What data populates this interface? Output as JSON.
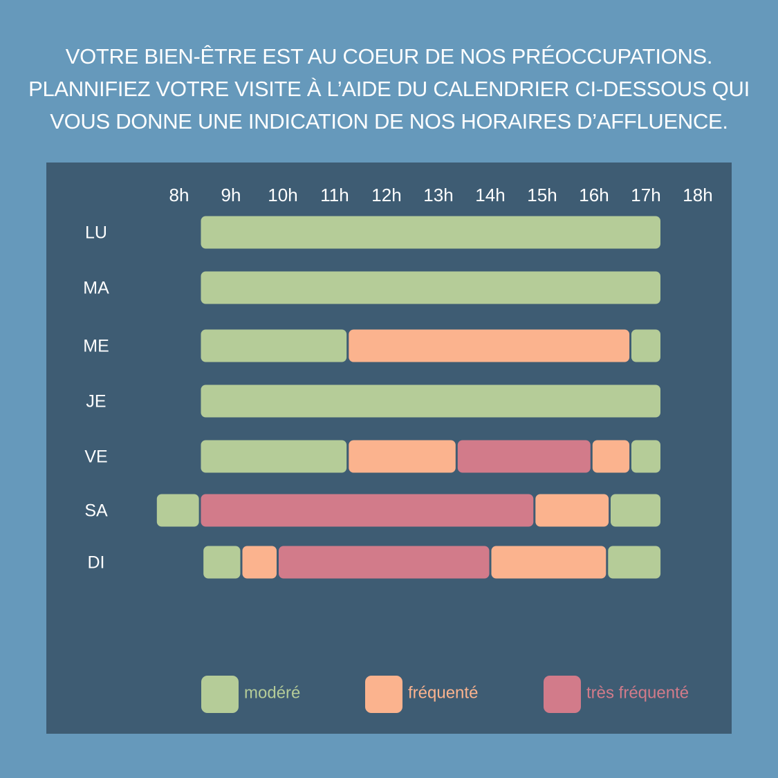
{
  "headline": {
    "line1": "VOTRE BIEN-ÊTRE EST AU COEUR DE NOS PRÉOCCUPATIONS.",
    "line2": "PLANNIFIEZ VOTRE VISITE À L’AIDE DU CALENDRIER CI-DESSOUS QUI",
    "line3": "VOUS DONNE UNE INDICATION DE NOS HORAIRES D’AFFLUENCE."
  },
  "colors": {
    "page_background": "#6699bb",
    "panel_background": "#3e5c73",
    "modere": "#b5cc98",
    "frequente": "#fbb38e",
    "tres_frequente": "#d27b8a"
  },
  "chart_data": {
    "type": "timeline",
    "title": "",
    "xlabel": "",
    "ylabel": "",
    "hours": [
      "8h",
      "9h",
      "10h",
      "11h",
      "12h",
      "13h",
      "14h",
      "15h",
      "16h",
      "17h",
      "18h"
    ],
    "hour_values": [
      8,
      9,
      10,
      11,
      12,
      13,
      14,
      15,
      16,
      17,
      18
    ],
    "days": [
      "LU",
      "MA",
      "ME",
      "JE",
      "VE",
      "SA",
      "DI"
    ],
    "grid": false,
    "legend_position": "bottom",
    "legend": [
      {
        "key": "modere",
        "label": "modéré"
      },
      {
        "key": "frequente",
        "label": "fréquenté"
      },
      {
        "key": "tres_frequente",
        "label": "très fréquenté"
      }
    ],
    "segments": [
      {
        "day": "LU",
        "start": 8.4,
        "end": 17.3,
        "level": "modere"
      },
      {
        "day": "MA",
        "start": 8.4,
        "end": 17.3,
        "level": "modere"
      },
      {
        "day": "ME",
        "start": 8.4,
        "end": 11.25,
        "level": "modere"
      },
      {
        "day": "ME",
        "start": 11.25,
        "end": 16.7,
        "level": "frequente"
      },
      {
        "day": "ME",
        "start": 16.7,
        "end": 17.3,
        "level": "modere"
      },
      {
        "day": "JE",
        "start": 8.4,
        "end": 17.3,
        "level": "modere"
      },
      {
        "day": "VE",
        "start": 8.4,
        "end": 11.25,
        "level": "modere"
      },
      {
        "day": "VE",
        "start": 11.25,
        "end": 13.35,
        "level": "frequente"
      },
      {
        "day": "VE",
        "start": 13.35,
        "end": 15.95,
        "level": "tres_frequente"
      },
      {
        "day": "VE",
        "start": 15.95,
        "end": 16.7,
        "level": "frequente"
      },
      {
        "day": "VE",
        "start": 16.7,
        "end": 17.3,
        "level": "modere"
      },
      {
        "day": "SA",
        "start": 7.55,
        "end": 8.4,
        "level": "modere"
      },
      {
        "day": "SA",
        "start": 8.4,
        "end": 14.85,
        "level": "tres_frequente"
      },
      {
        "day": "SA",
        "start": 14.85,
        "end": 16.3,
        "level": "frequente"
      },
      {
        "day": "SA",
        "start": 16.3,
        "end": 17.3,
        "level": "modere"
      },
      {
        "day": "DI",
        "start": 8.45,
        "end": 9.2,
        "level": "modere"
      },
      {
        "day": "DI",
        "start": 9.2,
        "end": 9.9,
        "level": "frequente"
      },
      {
        "day": "DI",
        "start": 9.9,
        "end": 14.0,
        "level": "tres_frequente"
      },
      {
        "day": "DI",
        "start": 14.0,
        "end": 16.25,
        "level": "frequente"
      },
      {
        "day": "DI",
        "start": 16.25,
        "end": 17.3,
        "level": "modere"
      }
    ]
  }
}
